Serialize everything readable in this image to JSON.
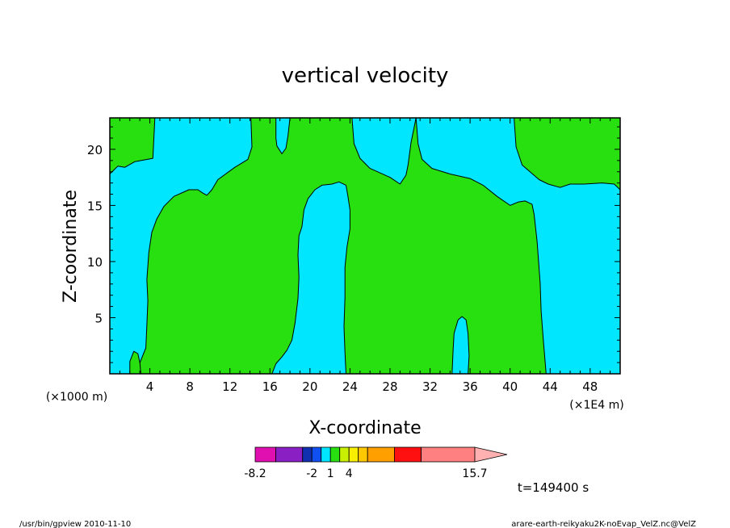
{
  "chart_data": {
    "type": "contour",
    "title": "vertical velocity",
    "xlabel": "X-coordinate",
    "ylabel": "Z-coordinate",
    "x_unit_left": "(×1000 m)",
    "x_unit_right": "(×1E4 m)",
    "xlim": [
      0,
      51
    ],
    "ylim": [
      0,
      22.8
    ],
    "xticks": [
      4,
      8,
      12,
      16,
      20,
      24,
      28,
      32,
      36,
      40,
      44,
      48
    ],
    "yticks": [
      5,
      10,
      15,
      20
    ],
    "time_label": "t=149400 s",
    "colorbar": {
      "ticks": [
        {
          "label": "-8.2",
          "boundary": 0
        },
        {
          "label": "-2",
          "boundary": 3
        },
        {
          "label": "1",
          "boundary": 5
        },
        {
          "label": "4",
          "boundary": 7
        }
      ],
      "max_label": "15.7",
      "boxes": [
        {
          "color": "#e010b0",
          "width": 1.0
        },
        {
          "color": "#8a1fc4",
          "width": 1.3
        },
        {
          "color": "#1030b0",
          "width": 0.45
        },
        {
          "color": "#1050f0",
          "width": 0.45
        },
        {
          "color": "#00e6ff",
          "width": 0.45
        },
        {
          "color": "#28e010",
          "width": 0.45
        },
        {
          "color": "#c8f000",
          "width": 0.45
        },
        {
          "color": "#f8f000",
          "width": 0.45
        },
        {
          "color": "#ffc800",
          "width": 0.45
        },
        {
          "color": "#ffa000",
          "width": 1.3
        },
        {
          "color": "#ff1010",
          "width": 1.3
        },
        {
          "color": "#ff8080",
          "width": 2.6
        }
      ],
      "arrow_color": "#ffb0b0"
    },
    "field_colors": {
      "negative": "#00e6ff",
      "positive": "#28e010"
    },
    "regions": [
      {
        "sign": "negative",
        "boundary": [
          [
            0,
            17.8
          ],
          [
            0.8,
            18.5
          ],
          [
            1.5,
            18.4
          ],
          [
            2.5,
            18.9
          ],
          [
            4.3,
            19.2
          ],
          [
            4.5,
            22.8
          ],
          [
            14.1,
            22.8
          ],
          [
            14.2,
            20.2
          ],
          [
            13.8,
            19.1
          ],
          [
            12.5,
            18.4
          ],
          [
            10.8,
            17.3
          ],
          [
            10.2,
            16.4
          ],
          [
            9.7,
            15.9
          ],
          [
            9.3,
            16.1
          ],
          [
            8.8,
            16.4
          ],
          [
            7.9,
            16.4
          ],
          [
            6.4,
            15.8
          ],
          [
            5.4,
            14.9
          ],
          [
            4.7,
            13.8
          ],
          [
            4.2,
            12.6
          ],
          [
            3.9,
            10.8
          ],
          [
            3.7,
            8.4
          ],
          [
            3.8,
            6.5
          ],
          [
            3.7,
            4.4
          ],
          [
            3.6,
            2.3
          ],
          [
            3.1,
            1.2
          ],
          [
            2.6,
            0
          ],
          [
            0,
            0
          ]
        ]
      },
      {
        "sign": "negative",
        "boundary": [
          [
            16.6,
            22.8
          ],
          [
            16.6,
            21.0
          ],
          [
            16.7,
            20.3
          ],
          [
            17.2,
            19.6
          ],
          [
            17.6,
            20.1
          ],
          [
            17.8,
            21.2
          ],
          [
            18.0,
            22.8
          ]
        ]
      },
      {
        "sign": "negative",
        "boundary": [
          [
            24.2,
            22.8
          ],
          [
            24.4,
            20.5
          ],
          [
            25.0,
            19.2
          ],
          [
            26.0,
            18.3
          ],
          [
            28.0,
            17.5
          ],
          [
            29.0,
            16.9
          ],
          [
            29.6,
            17.7
          ],
          [
            29.8,
            18.6
          ],
          [
            30.1,
            20.6
          ],
          [
            30.6,
            22.8
          ]
        ]
      },
      {
        "sign": "negative",
        "boundary": [
          [
            30.6,
            22.8
          ],
          [
            30.8,
            20.5
          ],
          [
            31.2,
            19.1
          ],
          [
            32.2,
            18.3
          ],
          [
            34.0,
            17.8
          ],
          [
            36.0,
            17.4
          ],
          [
            37.3,
            16.8
          ],
          [
            38.7,
            15.8
          ],
          [
            40.0,
            15.0
          ],
          [
            40.8,
            15.3
          ],
          [
            41.5,
            15.4
          ],
          [
            42.2,
            15.1
          ],
          [
            42.4,
            14.2
          ],
          [
            42.7,
            11.8
          ],
          [
            43.0,
            8.1
          ],
          [
            43.1,
            5.6
          ],
          [
            43.3,
            3.2
          ],
          [
            43.6,
            0
          ],
          [
            51,
            0
          ],
          [
            51,
            16.4
          ],
          [
            50.4,
            16.9
          ],
          [
            49.2,
            17.0
          ],
          [
            47.4,
            16.9
          ],
          [
            46.0,
            16.9
          ],
          [
            45.0,
            16.6
          ],
          [
            43.8,
            16.9
          ],
          [
            42.9,
            17.3
          ],
          [
            41.2,
            18.6
          ],
          [
            40.6,
            20.2
          ],
          [
            40.4,
            22.8
          ]
        ]
      },
      {
        "sign": "negative",
        "boundary": [
          [
            16.2,
            0
          ],
          [
            16.6,
            0.9
          ],
          [
            17.2,
            1.5
          ],
          [
            17.7,
            2.1
          ],
          [
            18.2,
            3.0
          ],
          [
            18.5,
            4.5
          ],
          [
            18.8,
            6.7
          ],
          [
            18.9,
            8.6
          ],
          [
            18.8,
            10.6
          ],
          [
            18.9,
            12.3
          ],
          [
            19.2,
            13.1
          ],
          [
            19.4,
            14.6
          ],
          [
            19.8,
            15.6
          ],
          [
            20.5,
            16.4
          ],
          [
            21.2,
            16.8
          ],
          [
            22.2,
            16.9
          ],
          [
            22.9,
            17.1
          ],
          [
            23.6,
            16.8
          ],
          [
            23.8,
            15.8
          ],
          [
            24.0,
            14.6
          ],
          [
            24.0,
            12.9
          ],
          [
            23.7,
            11.3
          ],
          [
            23.5,
            9.5
          ],
          [
            23.5,
            6.8
          ],
          [
            23.4,
            4.2
          ],
          [
            23.5,
            1.9
          ],
          [
            23.6,
            0
          ]
        ]
      },
      {
        "sign": "negative",
        "boundary": [
          [
            34.2,
            0
          ],
          [
            34.3,
            2.1
          ],
          [
            34.4,
            3.6
          ],
          [
            34.8,
            4.8
          ],
          [
            35.2,
            5.1
          ],
          [
            35.6,
            4.8
          ],
          [
            35.8,
            3.6
          ],
          [
            35.9,
            1.6
          ],
          [
            35.8,
            0
          ]
        ]
      },
      {
        "sign": "positive",
        "boundary": [
          [
            2.0,
            0
          ],
          [
            2.0,
            1.1
          ],
          [
            2.4,
            2.0
          ],
          [
            2.8,
            1.8
          ],
          [
            3.0,
            1.0
          ],
          [
            3.1,
            0
          ]
        ]
      }
    ]
  },
  "footer": {
    "left": "/usr/bin/gpview  2010-11-10",
    "right": "arare-earth-reikyaku2K-noEvap_VelZ.nc@VelZ"
  }
}
